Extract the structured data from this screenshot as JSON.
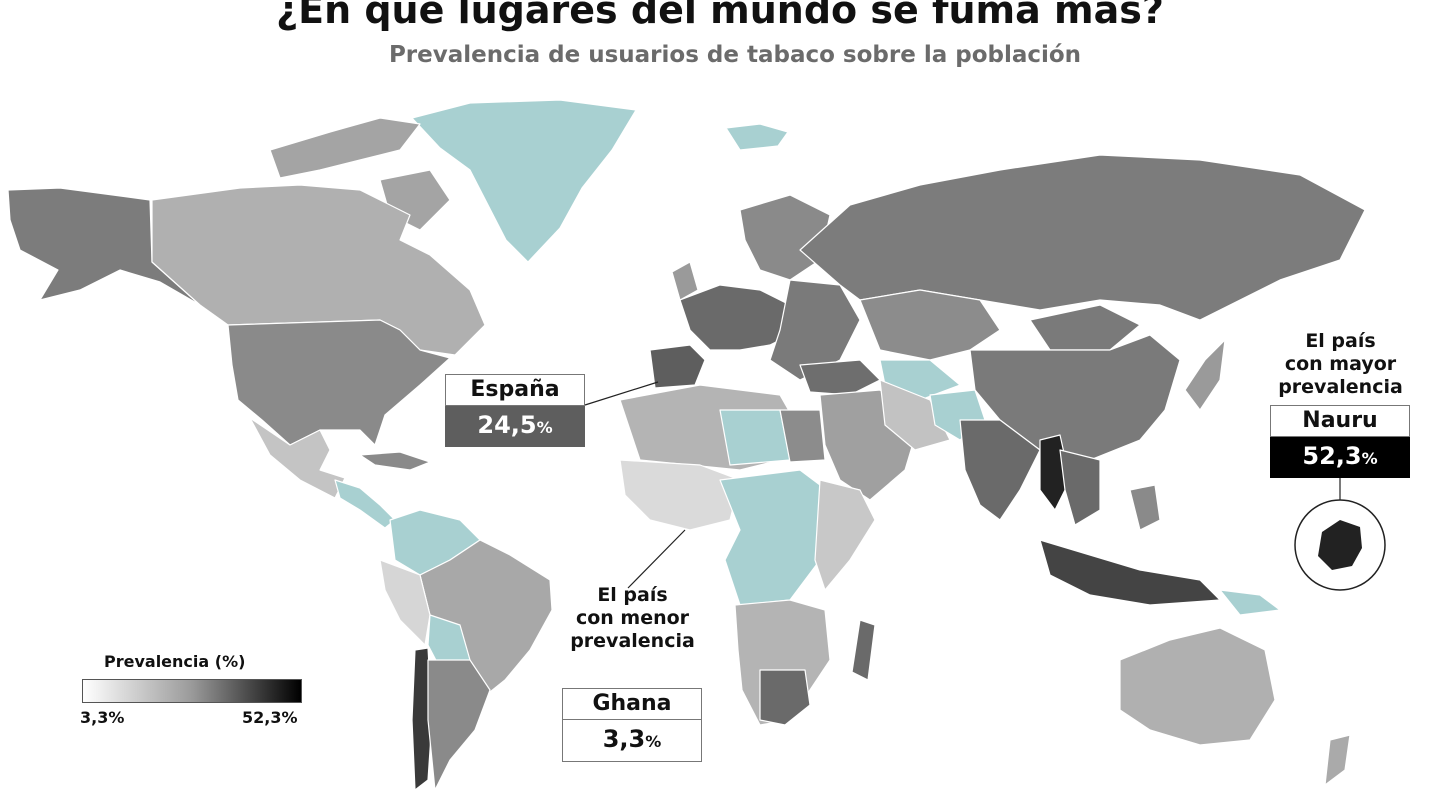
{
  "header": {
    "title": "¿En qué lugares del mundo se fuma más?",
    "subtitle": "Prevalencia de usuarios de tabaco sobre la población"
  },
  "callouts": {
    "spain": {
      "country": "España",
      "value": "24,5",
      "unit": "%"
    },
    "ghana": {
      "note_line1": "El país",
      "note_line2": "con menor",
      "note_line3": "prevalencia",
      "country": "Ghana",
      "value": "3,3",
      "unit": "%"
    },
    "nauru": {
      "note_line1": "El país",
      "note_line2": "con mayor",
      "note_line3": "prevalencia",
      "country": "Nauru",
      "value": "52,3",
      "unit": "%"
    }
  },
  "legend": {
    "title": "Prevalencia (%)",
    "min_label": "3,3%",
    "max_label": "52,3%",
    "min_value": 3.3,
    "max_value": 52.3,
    "gradient_colors": [
      "#ffffff",
      "#9a9a9a",
      "#000000"
    ]
  },
  "colors": {
    "no_data": "#a8d0d1",
    "spain_box": "#5e5e5e",
    "nauru_box": "#000000",
    "ghana_box": "#ffffff",
    "ocean": "#ffffff",
    "borders": "#ffffff"
  }
}
